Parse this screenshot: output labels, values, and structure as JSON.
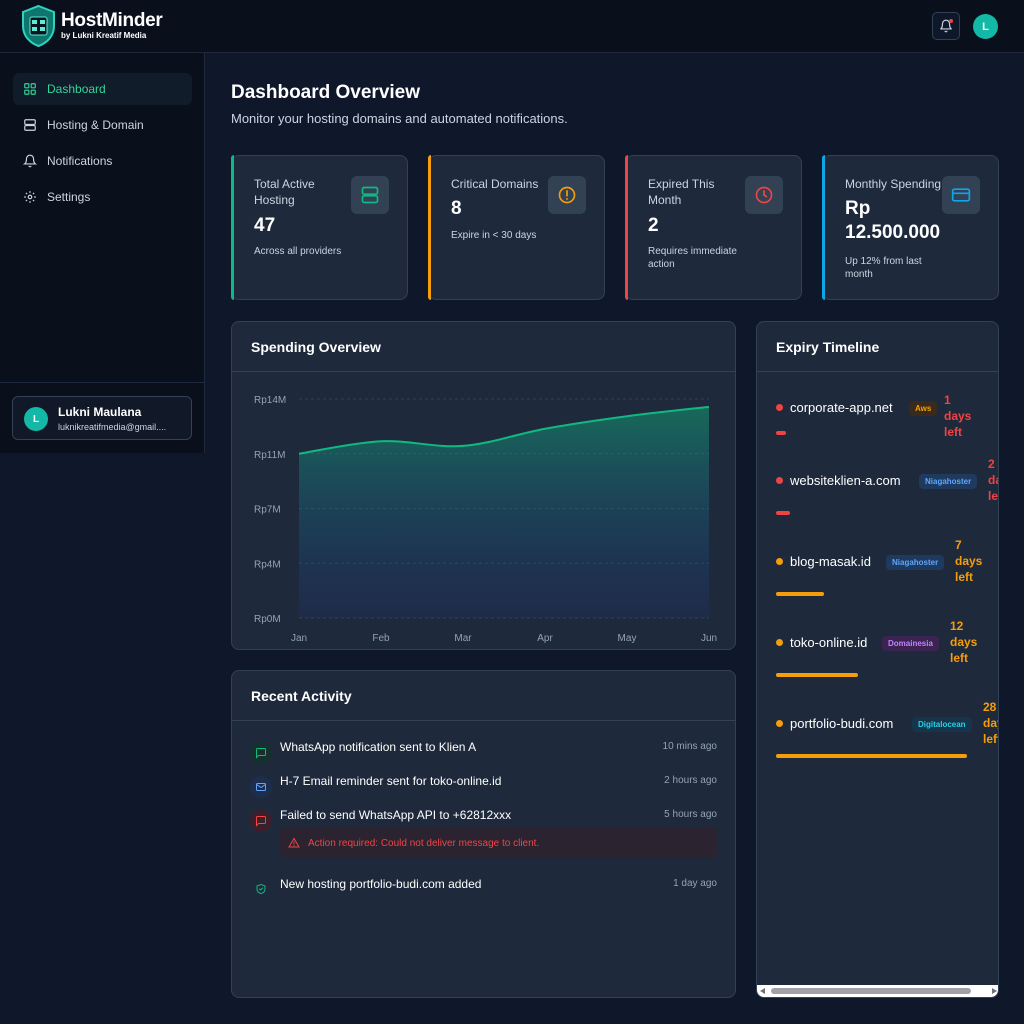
{
  "brand": {
    "name": "HostMinder",
    "sub": "by Lukni Kreatif Media"
  },
  "topbar": {
    "bell_icon": "bell-icon",
    "avatar_initial": "L"
  },
  "sidebar": {
    "items": [
      {
        "label": "Dashboard",
        "icon": "grid-icon",
        "active": true
      },
      {
        "label": "Hosting & Domain",
        "icon": "server-icon",
        "active": false
      },
      {
        "label": "Notifications",
        "icon": "bell-icon",
        "active": false
      },
      {
        "label": "Settings",
        "icon": "gear-icon",
        "active": false
      }
    ],
    "user": {
      "initial": "L",
      "name": "Lukni Maulana",
      "email": "luknikreatifmedia@gmail...."
    }
  },
  "header": {
    "title": "Dashboard Overview",
    "subtitle": "Monitor your hosting domains and automated notifications."
  },
  "stats": [
    {
      "label": "Total Active Hosting",
      "value": "47",
      "note": "Across all providers",
      "icon": "server-icon",
      "accent": "#10b981"
    },
    {
      "label": "Critical Domains",
      "value": "8",
      "note": "Expire in < 30 days",
      "icon": "alert-circle-icon",
      "accent": "#f59e0b"
    },
    {
      "label": "Expired This Month",
      "value": "2",
      "note": "Requires immediate action",
      "icon": "clock-icon",
      "accent": "#ef4444"
    },
    {
      "label": "Monthly Spending",
      "value": "Rp 12.500.000",
      "note": "Up 12% from last month",
      "icon": "credit-card-icon",
      "accent": "#0ea5e9"
    }
  ],
  "spending": {
    "title": "Spending Overview",
    "chart_data": {
      "type": "area",
      "title": "Spending Overview",
      "categories": [
        "Jan",
        "Feb",
        "Mar",
        "Apr",
        "May",
        "Jun"
      ],
      "values": [
        10.5,
        11.3,
        11.0,
        12.1,
        12.9,
        13.5
      ],
      "y_ticks": [
        0,
        3.5,
        7,
        10.5,
        14
      ],
      "y_tick_labels": [
        "Rp0M",
        "Rp4M",
        "Rp7M",
        "Rp11M",
        "Rp14M"
      ],
      "ylim": [
        0,
        14
      ],
      "grid": true,
      "color": "#10b981"
    }
  },
  "activity": {
    "title": "Recent Activity",
    "items": [
      {
        "text": "WhatsApp notification sent to Klien A",
        "time": "10 mins ago",
        "icon": "chat-icon"
      },
      {
        "text": "H-7 Email reminder sent for toko-online.id",
        "time": "2 hours ago",
        "icon": "mail-icon"
      },
      {
        "text": "Failed to send WhatsApp API to +62812xxx",
        "time": "5 hours ago",
        "icon": "chat-error-icon"
      },
      {
        "text": "New hosting portfolio-budi.com added",
        "time": "1 day ago",
        "icon": "shield-check-icon"
      }
    ],
    "alert": "Action required: Could not deliver message to client."
  },
  "timeline": {
    "title": "Expiry Timeline",
    "items": [
      {
        "domain": "corporate-app.net",
        "provider": "Aws",
        "days_line1": "1 days",
        "days_line2": "left",
        "days_line3": "",
        "days_left": 1
      },
      {
        "domain": "websiteklien-a.com",
        "provider": "Niagahoster",
        "days_line1": "2",
        "days_line2": "da",
        "days_line3": "lef",
        "days_left": 2
      },
      {
        "domain": "blog-masak.id",
        "provider": "Niagahoster",
        "days_line1": "7",
        "days_line2": "days",
        "days_line3": "left",
        "days_left": 7
      },
      {
        "domain": "toko-online.id",
        "provider": "Domainesia",
        "days_line1": "12",
        "days_line2": "days",
        "days_line3": "left",
        "days_left": 12
      },
      {
        "domain": "portfolio-budi.com",
        "provider": "Digitalocean",
        "days_line1": "28",
        "days_line2": "day",
        "days_line3": "left",
        "days_left": 28
      }
    ]
  }
}
